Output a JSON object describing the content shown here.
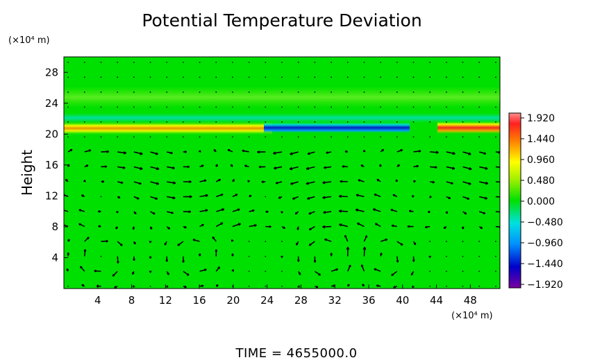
{
  "chart_data": {
    "type": "heatmap",
    "title": "Potential Temperature Deviation",
    "ylabel": "Height",
    "y_unit": "(×10⁴ m)",
    "x_unit": "(×10⁴ m)",
    "xlim": [
      0,
      51.5
    ],
    "ylim": [
      0,
      30
    ],
    "x_ticks": [
      "4",
      "8",
      "12",
      "16",
      "20",
      "24",
      "28",
      "32",
      "36",
      "40",
      "44",
      "48"
    ],
    "y_ticks": [
      "4",
      "8",
      "12",
      "16",
      "20",
      "24",
      "28"
    ],
    "colorbar": {
      "values": [
        1.92,
        1.44,
        0.96,
        0.48,
        0.0,
        -0.48,
        -0.96,
        -1.44,
        -1.92
      ],
      "labels": [
        "1.920",
        "1.440",
        "0.960",
        "0.480",
        "0.000",
        "−0.480",
        "−0.960",
        "−1.440",
        "−1.920"
      ]
    },
    "background_value": 0.0,
    "features": [
      {
        "name": "positive-band-west",
        "x_range": [
          0,
          24
        ],
        "y": 20.7,
        "value": 1.3
      },
      {
        "name": "negative-band-center",
        "x_range": [
          24,
          40
        ],
        "y": 20.8,
        "value": -1.5
      },
      {
        "name": "positive-band-east",
        "x_range": [
          44,
          51.5
        ],
        "y": 20.8,
        "value": 1.9
      },
      {
        "name": "weak-positive-layer",
        "x_range": [
          0,
          51.5
        ],
        "y": 24.5,
        "value": 0.3
      }
    ],
    "vortices": [
      {
        "x": 4.5,
        "y": 4.0,
        "rotation": "clockwise"
      },
      {
        "x": 15.5,
        "y": 4.2,
        "rotation": "counterclockwise"
      },
      {
        "x": 31.0,
        "y": 4.2,
        "rotation": "counterclockwise"
      },
      {
        "x": 38.0,
        "y": 4.0,
        "rotation": "clockwise"
      }
    ],
    "time_label": "TIME  =  4655000.0"
  }
}
